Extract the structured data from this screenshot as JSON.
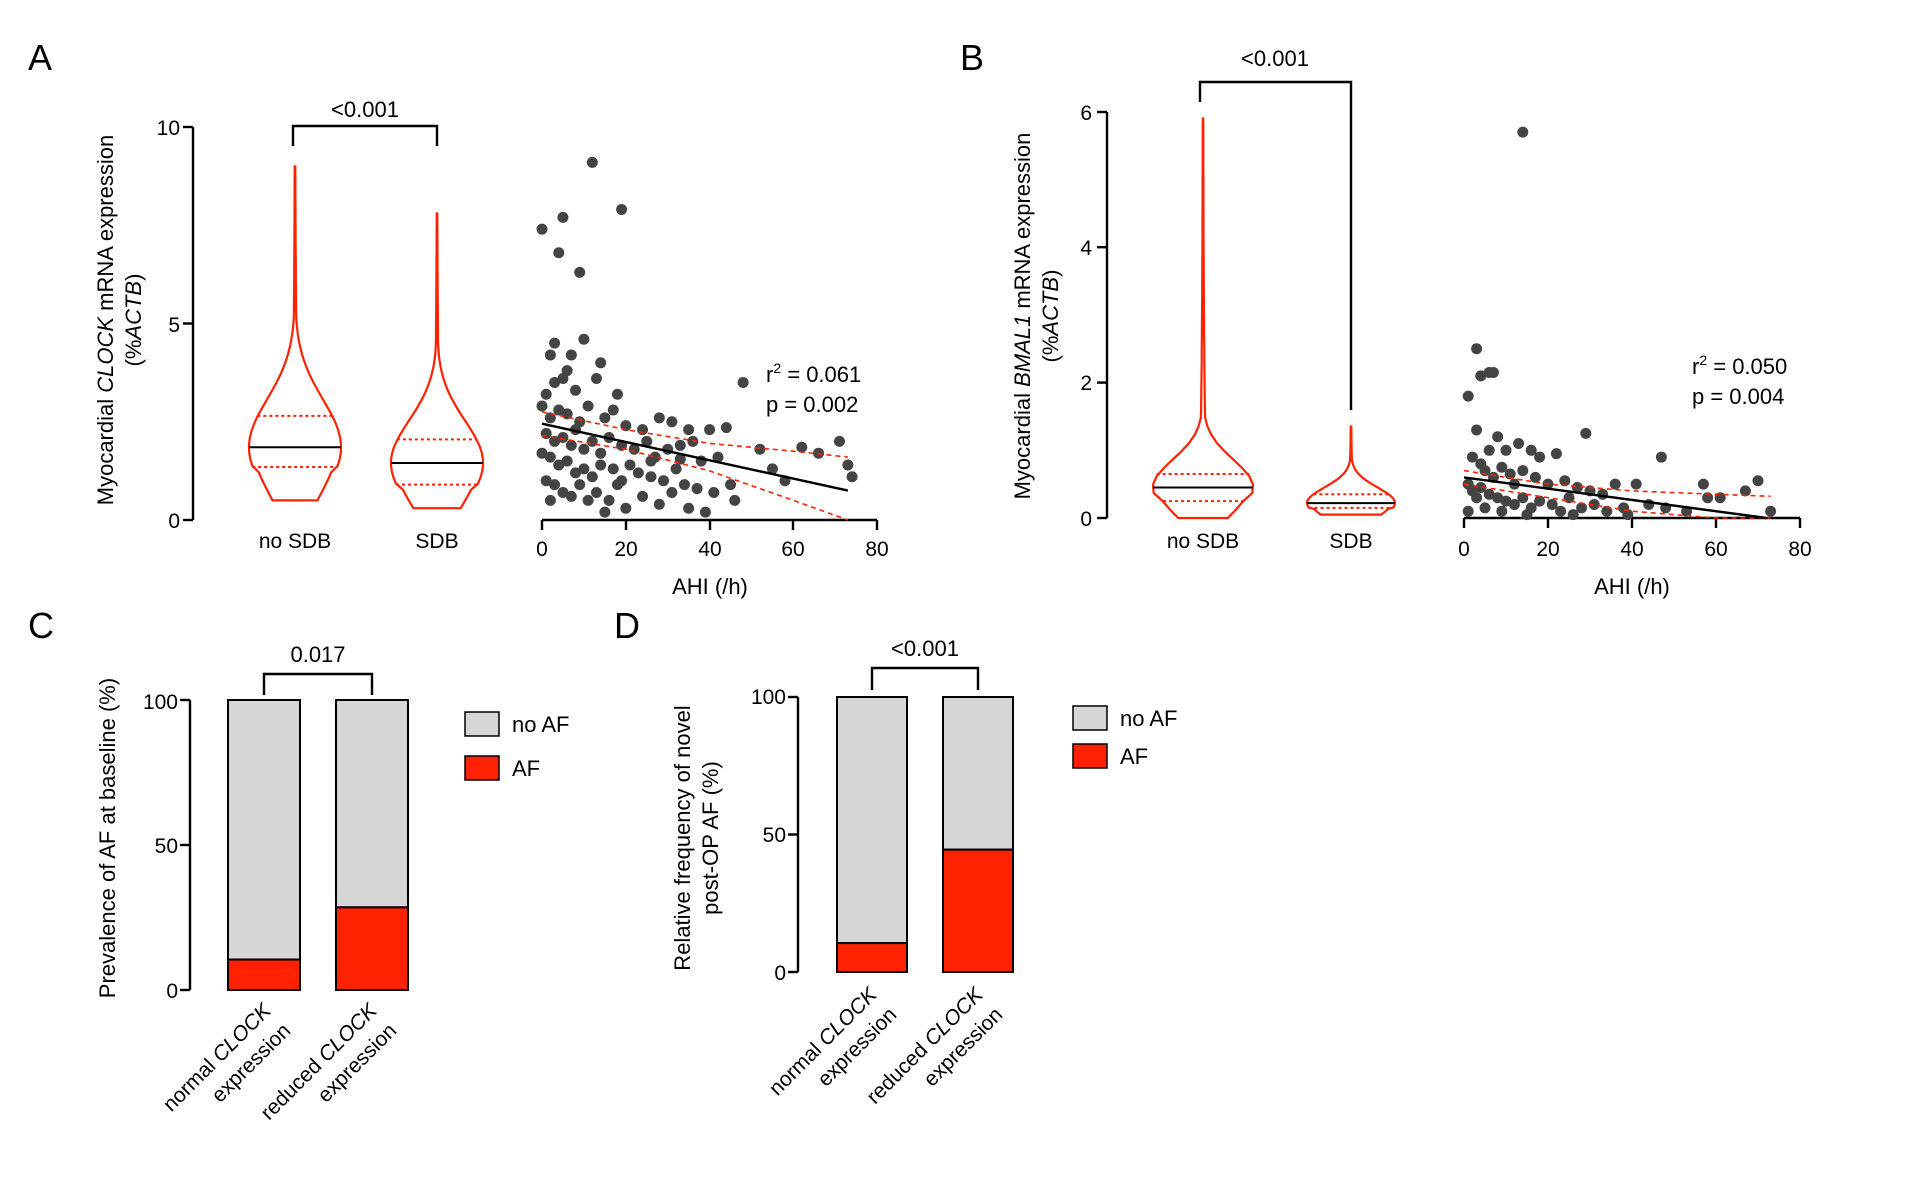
{
  "colors": {
    "violin": "#ff2200",
    "af": "#ff2200",
    "no_af": "#d6d6d6",
    "point": "#444444",
    "fit": "#000000",
    "ci": "#ff2200"
  },
  "panels": {
    "A": {
      "label": "A",
      "ylabel_pre": "Myocardial ",
      "ylabel_gene": "CLOCK",
      "ylabel_post": " mRNA expression",
      "ylabel_line2_pre": "(%",
      "ylabel_line2_gene": "ACTB",
      "ylabel_line2_post": ")",
      "yticks": [
        "0",
        "5",
        "10"
      ],
      "groups": [
        "no SDB",
        "SDB"
      ],
      "pvalue": "<0.001",
      "scatter_xticks": [
        "0",
        "20",
        "40",
        "60",
        "80"
      ],
      "scatter_xlabel": "AHI (/h)",
      "r2_label": "r",
      "r2_value": " = 0.061",
      "p_label": "p = 0.002"
    },
    "B": {
      "label": "B",
      "ylabel_pre": "Myocardial ",
      "ylabel_gene": "BMAL1",
      "ylabel_post": " mRNA expression",
      "ylabel_line2_pre": "(%",
      "ylabel_line2_gene": "ACTB",
      "ylabel_line2_post": ")",
      "yticks": [
        "0",
        "2",
        "4",
        "6"
      ],
      "groups": [
        "no SDB",
        "SDB"
      ],
      "pvalue": "<0.001",
      "scatter_xticks": [
        "0",
        "20",
        "40",
        "60",
        "80"
      ],
      "scatter_xlabel": "AHI (/h)",
      "r2_label": "r",
      "r2_value": " = 0.050",
      "p_label": "p = 0.004"
    },
    "C": {
      "label": "C",
      "ylabel": "Prevalence of AF at baseline (%)",
      "yticks": [
        "0",
        "50",
        "100"
      ],
      "pvalue": "0.017",
      "cat1_line1_pre": "normal ",
      "cat1_line1_gene": "CLOCK",
      "cat1_line2": "expression",
      "cat2_line1_pre": "reduced ",
      "cat2_line1_gene": "CLOCK",
      "cat2_line2": "expression",
      "legend_no_af": "no AF",
      "legend_af": "AF"
    },
    "D": {
      "label": "D",
      "ylabel_line1": "Relative frequency of novel",
      "ylabel_line2": "post-OP AF (%)",
      "yticks": [
        "0",
        "50",
        "100"
      ],
      "pvalue": "<0.001",
      "cat1_line1_pre": "normal ",
      "cat1_line1_gene": "CLOCK",
      "cat1_line2": "expression",
      "cat2_line1_pre": "reduced ",
      "cat2_line1_gene": "CLOCK",
      "cat2_line2": "expression",
      "legend_no_af": "no AF",
      "legend_af": "AF"
    }
  },
  "chart_data": [
    {
      "type": "violin",
      "panel": "A",
      "categories": [
        "no SDB",
        "SDB"
      ],
      "ylim": [
        0,
        10
      ],
      "series": [
        {
          "name": "no SDB",
          "median": 1.85,
          "q1": 1.35,
          "q3": 2.65,
          "min": 0.5,
          "max": 9.0
        },
        {
          "name": "SDB",
          "median": 1.45,
          "q1": 0.9,
          "q3": 2.05,
          "min": 0.3,
          "max": 7.8
        }
      ],
      "pvalue": "<0.001"
    },
    {
      "type": "scatter",
      "panel": "A",
      "xlabel": "AHI (/h)",
      "xlim": [
        0,
        80
      ],
      "ylim": [
        0,
        10
      ],
      "fit": {
        "x": [
          0,
          73
        ],
        "y": [
          2.45,
          0.75
        ]
      },
      "ci_upper": {
        "x": [
          0,
          20,
          40,
          60,
          73
        ],
        "y": [
          2.75,
          2.3,
          1.95,
          1.75,
          1.6
        ]
      },
      "ci_lower": {
        "x": [
          0,
          20,
          40,
          60,
          73
        ],
        "y": [
          2.15,
          1.8,
          1.25,
          0.5,
          0.0
        ]
      },
      "r2": 0.061,
      "p": 0.002,
      "points": [
        [
          12,
          9.1
        ],
        [
          19,
          7.9
        ],
        [
          0,
          7.4
        ],
        [
          5,
          7.7
        ],
        [
          4,
          6.8
        ],
        [
          9,
          6.3
        ],
        [
          3,
          4.5
        ],
        [
          7,
          4.2
        ],
        [
          10,
          4.6
        ],
        [
          14,
          4.0
        ],
        [
          2,
          4.2
        ],
        [
          6,
          3.8
        ],
        [
          3,
          3.5
        ],
        [
          5,
          3.6
        ],
        [
          8,
          3.3
        ],
        [
          1,
          3.2
        ],
        [
          13,
          3.6
        ],
        [
          18,
          3.2
        ],
        [
          0,
          2.9
        ],
        [
          2,
          2.6
        ],
        [
          4,
          2.8
        ],
        [
          6,
          2.7
        ],
        [
          9,
          2.5
        ],
        [
          11,
          2.9
        ],
        [
          15,
          2.6
        ],
        [
          17,
          2.8
        ],
        [
          20,
          2.4
        ],
        [
          24,
          2.3
        ],
        [
          28,
          2.6
        ],
        [
          31,
          2.5
        ],
        [
          35,
          2.3
        ],
        [
          40,
          2.3
        ],
        [
          44,
          2.35
        ],
        [
          48,
          3.5
        ],
        [
          1,
          2.2
        ],
        [
          3,
          2.0
        ],
        [
          5,
          2.1
        ],
        [
          7,
          1.9
        ],
        [
          8,
          2.3
        ],
        [
          10,
          1.8
        ],
        [
          12,
          2.0
        ],
        [
          14,
          1.7
        ],
        [
          16,
          2.1
        ],
        [
          19,
          1.9
        ],
        [
          22,
          1.8
        ],
        [
          25,
          2.0
        ],
        [
          27,
          1.6
        ],
        [
          30,
          1.8
        ],
        [
          33,
          1.9
        ],
        [
          36,
          2.0
        ],
        [
          38,
          1.5
        ],
        [
          42,
          1.6
        ],
        [
          2,
          1.6
        ],
        [
          4,
          1.4
        ],
        [
          6,
          1.5
        ],
        [
          8,
          1.2
        ],
        [
          10,
          1.3
        ],
        [
          12,
          1.1
        ],
        [
          14,
          1.4
        ],
        [
          17,
          1.3
        ],
        [
          19,
          1.0
        ],
        [
          21,
          1.4
        ],
        [
          23,
          1.2
        ],
        [
          26,
          1.1
        ],
        [
          29,
          1.0
        ],
        [
          32,
          1.3
        ],
        [
          34,
          0.9
        ],
        [
          37,
          0.8
        ],
        [
          41,
          0.7
        ],
        [
          46,
          0.5
        ],
        [
          52,
          1.8
        ],
        [
          55,
          1.3
        ],
        [
          58,
          1.0
        ],
        [
          62,
          1.85
        ],
        [
          66,
          1.7
        ],
        [
          71,
          2.0
        ],
        [
          73,
          1.4
        ],
        [
          74,
          1.1
        ],
        [
          3,
          0.9
        ],
        [
          5,
          0.7
        ],
        [
          7,
          0.6
        ],
        [
          9,
          0.9
        ],
        [
          11,
          0.5
        ],
        [
          13,
          0.7
        ],
        [
          16,
          0.5
        ],
        [
          18,
          0.9
        ],
        [
          20,
          0.3
        ],
        [
          24,
          0.6
        ],
        [
          28,
          0.4
        ],
        [
          31,
          0.7
        ],
        [
          35,
          0.3
        ],
        [
          39,
          0.2
        ],
        [
          15,
          0.2
        ],
        [
          0,
          1.7
        ],
        [
          1,
          1.0
        ],
        [
          2,
          0.5
        ],
        [
          26,
          1.5
        ],
        [
          33,
          1.55
        ],
        [
          45,
          0.9
        ]
      ]
    },
    {
      "type": "violin",
      "panel": "B",
      "categories": [
        "no SDB",
        "SDB"
      ],
      "ylim": [
        0,
        6
      ],
      "series": [
        {
          "name": "no SDB",
          "median": 0.45,
          "q1": 0.25,
          "q3": 0.65,
          "min": 0.0,
          "max": 5.9
        },
        {
          "name": "SDB",
          "median": 0.22,
          "q1": 0.15,
          "q3": 0.35,
          "min": 0.05,
          "max": 1.35
        }
      ],
      "pvalue": "<0.001"
    },
    {
      "type": "scatter",
      "panel": "B",
      "xlabel": "AHI (/h)",
      "xlim": [
        0,
        80
      ],
      "ylim": [
        0,
        6
      ],
      "fit": {
        "x": [
          0,
          72
        ],
        "y": [
          0.6,
          0.0
        ]
      },
      "ci_upper": {
        "x": [
          0,
          20,
          40,
          60,
          73
        ],
        "y": [
          0.7,
          0.5,
          0.4,
          0.35,
          0.32
        ]
      },
      "ci_lower": {
        "x": [
          0,
          20,
          40,
          60,
          73
        ],
        "y": [
          0.5,
          0.3,
          0.1,
          0.0,
          0.0
        ]
      },
      "r2": 0.05,
      "p": 0.004,
      "points": [
        [
          14,
          5.7
        ],
        [
          3,
          2.5
        ],
        [
          4,
          2.1
        ],
        [
          6,
          2.15
        ],
        [
          7,
          2.15
        ],
        [
          1,
          1.8
        ],
        [
          3,
          1.3
        ],
        [
          6,
          1.0
        ],
        [
          8,
          1.2
        ],
        [
          10,
          1.0
        ],
        [
          13,
          1.1
        ],
        [
          16,
          1.0
        ],
        [
          18,
          0.9
        ],
        [
          22,
          0.95
        ],
        [
          29,
          1.25
        ],
        [
          47,
          0.9
        ],
        [
          2,
          0.9
        ],
        [
          4,
          0.8
        ],
        [
          5,
          0.7
        ],
        [
          7,
          0.6
        ],
        [
          9,
          0.75
        ],
        [
          11,
          0.65
        ],
        [
          12,
          0.5
        ],
        [
          14,
          0.7
        ],
        [
          17,
          0.6
        ],
        [
          20,
          0.5
        ],
        [
          24,
          0.55
        ],
        [
          27,
          0.45
        ],
        [
          30,
          0.4
        ],
        [
          33,
          0.35
        ],
        [
          36,
          0.5
        ],
        [
          41,
          0.5
        ],
        [
          57,
          0.5
        ],
        [
          61,
          0.3
        ],
        [
          67,
          0.4
        ],
        [
          70,
          0.55
        ],
        [
          73,
          0.1
        ],
        [
          1,
          0.5
        ],
        [
          2,
          0.4
        ],
        [
          3,
          0.3
        ],
        [
          4,
          0.45
        ],
        [
          6,
          0.35
        ],
        [
          8,
          0.3
        ],
        [
          10,
          0.25
        ],
        [
          12,
          0.2
        ],
        [
          14,
          0.3
        ],
        [
          16,
          0.15
        ],
        [
          18,
          0.25
        ],
        [
          21,
          0.2
        ],
        [
          23,
          0.1
        ],
        [
          25,
          0.3
        ],
        [
          28,
          0.15
        ],
        [
          31,
          0.2
        ],
        [
          34,
          0.1
        ],
        [
          38,
          0.15
        ],
        [
          44,
          0.2
        ],
        [
          48,
          0.15
        ],
        [
          53,
          0.1
        ],
        [
          1,
          0.1
        ],
        [
          5,
          0.15
        ],
        [
          9,
          0.1
        ],
        [
          15,
          0.05
        ],
        [
          26,
          0.05
        ],
        [
          39,
          0.05
        ],
        [
          58,
          0.3
        ]
      ]
    },
    {
      "type": "bar",
      "panel": "C",
      "stacked": true,
      "categories": [
        "normal CLOCK expression",
        "reduced CLOCK expression"
      ],
      "ylim": [
        0,
        100
      ],
      "series": [
        {
          "name": "AF",
          "values": [
            10.5,
            28.5
          ]
        },
        {
          "name": "no AF",
          "values": [
            89.5,
            71.5
          ]
        }
      ],
      "pvalue": "0.017",
      "legend": "right"
    },
    {
      "type": "bar",
      "panel": "D",
      "stacked": true,
      "categories": [
        "normal CLOCK expression",
        "reduced CLOCK expression"
      ],
      "ylim": [
        0,
        100
      ],
      "series": [
        {
          "name": "AF",
          "values": [
            10.5,
            44.5
          ]
        },
        {
          "name": "no AF",
          "values": [
            89.5,
            55.5
          ]
        }
      ],
      "pvalue": "<0.001",
      "legend": "right"
    }
  ]
}
